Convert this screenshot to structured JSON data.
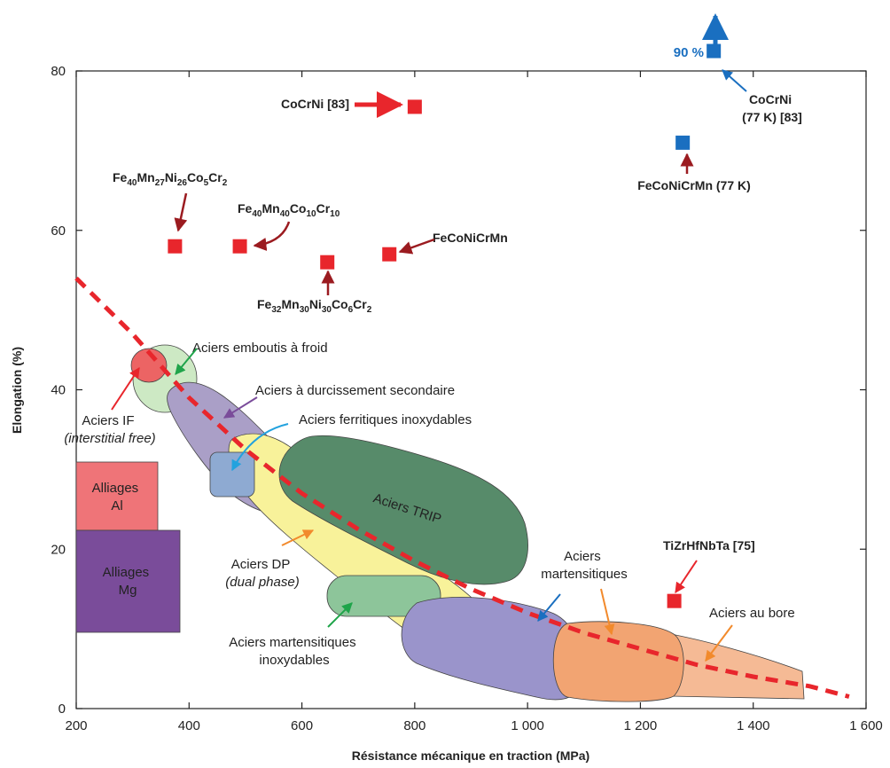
{
  "chart_data": {
    "type": "scatter",
    "xlabel": "Résistance mécanique en traction (MPa)",
    "ylabel": "Elongation (%)",
    "xlim": [
      200,
      1600
    ],
    "ylim": [
      0,
      80
    ],
    "x_ticks": [
      {
        "value": 200,
        "label": "200"
      },
      {
        "value": 400,
        "label": "400"
      },
      {
        "value": 600,
        "label": "600"
      },
      {
        "value": 800,
        "label": "800"
      },
      {
        "value": 1000,
        "label": "1 000"
      },
      {
        "value": 1200,
        "label": "1 200"
      },
      {
        "value": 1400,
        "label": "1 400"
      },
      {
        "value": 1600,
        "label": "1 600"
      }
    ],
    "y_ticks": [
      {
        "value": 0,
        "label": "0"
      },
      {
        "value": 20,
        "label": "20"
      },
      {
        "value": 40,
        "label": "40"
      },
      {
        "value": 60,
        "label": "60"
      },
      {
        "value": 80,
        "label": "80"
      }
    ],
    "grid": false,
    "colors": {
      "alloy_room_temp": "#e8262c",
      "alloy_77K": "#1a6fc0",
      "trend_line": "#e8262c",
      "alliages_al": "#ef7478",
      "alliages_mg": "#7a4c9a",
      "aciers_if": "#ec6464",
      "aciers_emboutis": "#cde9c4",
      "aciers_durcissement": "#aa9fc7",
      "aciers_ferritiques": "#8eaad2",
      "aciers_dp": "#f8f29a",
      "aciers_trip": "#578b6a",
      "aciers_mart_inox": "#8dc59a",
      "aciers_martensitiques": "#9a94cb",
      "aciers_bore_1": "#f2a472",
      "aciers_bore_2": "#f5ba95"
    },
    "alloy_points": [
      {
        "name_parts": [
          {
            "t": "CoCrNi [83]"
          }
        ],
        "x": 800,
        "y": 75.5,
        "condition": "room",
        "label_anchor": "end"
      },
      {
        "name_parts": [
          {
            "t": "Fe"
          },
          {
            "t": "40",
            "sub": true
          },
          {
            "t": "Mn"
          },
          {
            "t": "27",
            "sub": true
          },
          {
            "t": "Ni"
          },
          {
            "t": "26",
            "sub": true
          },
          {
            "t": "Co"
          },
          {
            "t": "5",
            "sub": true
          },
          {
            "t": "Cr"
          },
          {
            "t": "2",
            "sub": true
          }
        ],
        "x": 375,
        "y": 58,
        "condition": "room",
        "label_anchor": "start"
      },
      {
        "name_parts": [
          {
            "t": "Fe"
          },
          {
            "t": "40",
            "sub": true
          },
          {
            "t": "Mn"
          },
          {
            "t": "40",
            "sub": true
          },
          {
            "t": "Co"
          },
          {
            "t": "10",
            "sub": true
          },
          {
            "t": "Cr"
          },
          {
            "t": "10",
            "sub": true
          }
        ],
        "x": 490,
        "y": 58,
        "condition": "room",
        "label_anchor": "start"
      },
      {
        "name_parts": [
          {
            "t": "Fe"
          },
          {
            "t": "32",
            "sub": true
          },
          {
            "t": "Mn"
          },
          {
            "t": "30",
            "sub": true
          },
          {
            "t": "Ni"
          },
          {
            "t": "30",
            "sub": true
          },
          {
            "t": "Co"
          },
          {
            "t": "6",
            "sub": true
          },
          {
            "t": "Cr"
          },
          {
            "t": "2",
            "sub": true
          }
        ],
        "x": 645,
        "y": 56,
        "condition": "room",
        "label_anchor": "middle"
      },
      {
        "name_parts": [
          {
            "t": "FeCoNiCrMn"
          }
        ],
        "x": 755,
        "y": 57,
        "condition": "room",
        "label_anchor": "start"
      },
      {
        "name_parts": [
          {
            "t": "FeCoNiCrMn (77 K)"
          }
        ],
        "x": 1275,
        "y": 71,
        "condition": "77K",
        "label_anchor": "middle"
      },
      {
        "name_parts": [
          {
            "t": "CoCrNi"
          }
        ],
        "name_line2": "(77 K) [83]",
        "x": 1330,
        "y": 82.5,
        "condition": "77K",
        "label_anchor": "middle",
        "annotation": "90 %"
      },
      {
        "name_parts": [
          {
            "t": "TiZrHfNbTa [75]"
          }
        ],
        "x": 1260,
        "y": 13.5,
        "condition": "room",
        "label_anchor": "start"
      }
    ],
    "trend_line": [
      [
        200,
        54
      ],
      [
        300,
        47
      ],
      [
        400,
        39
      ],
      [
        500,
        32.5
      ],
      [
        600,
        27
      ],
      [
        700,
        22.5
      ],
      [
        800,
        18.5
      ],
      [
        900,
        15
      ],
      [
        1000,
        12
      ],
      [
        1100,
        9.5
      ],
      [
        1200,
        7.5
      ],
      [
        1300,
        5.5
      ],
      [
        1400,
        4
      ],
      [
        1500,
        2.8
      ],
      [
        1570,
        1.5
      ]
    ],
    "material_regions": [
      {
        "key": "aciers_if",
        "label_lines": [
          "Aciers IF",
          "(interstitial free)"
        ],
        "italic_line": 1
      },
      {
        "key": "aciers_emboutis",
        "label_lines": [
          "Aciers emboutis à froid"
        ]
      },
      {
        "key": "aciers_durcissement",
        "label_lines": [
          "Aciers à durcissement secondaire"
        ]
      },
      {
        "key": "aciers_ferritiques",
        "label_lines": [
          "Aciers ferritiques inoxydables"
        ]
      },
      {
        "key": "aciers_trip",
        "label_lines": [
          "Aciers TRIP"
        ]
      },
      {
        "key": "aciers_dp",
        "label_lines": [
          "Aciers DP",
          "(dual phase)"
        ],
        "italic_line": 1
      },
      {
        "key": "aciers_mart_inox",
        "label_lines": [
          "Aciers martensitiques",
          "inoxydables"
        ]
      },
      {
        "key": "aciers_martensitiques",
        "label_lines": [
          "Aciers",
          "martensitiques"
        ]
      },
      {
        "key": "aciers_bore",
        "label_lines": [
          "Aciers au bore"
        ]
      },
      {
        "key": "alliages_al",
        "label_lines": [
          "Alliages",
          "Al"
        ],
        "x_range": [
          200,
          345
        ],
        "y_range": [
          22.5,
          31
        ]
      },
      {
        "key": "alliages_mg",
        "label_lines": [
          "Alliages",
          "Mg"
        ],
        "x_range": [
          200,
          385
        ],
        "y_range": [
          10,
          22.5
        ]
      }
    ]
  }
}
